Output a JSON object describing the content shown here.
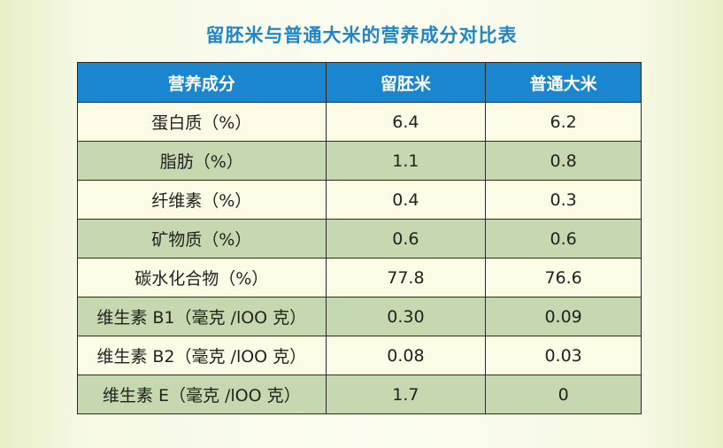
{
  "title": "留胚米与普通大米的营养成分对比表",
  "headers": [
    "营养成分",
    "留胚米",
    "普通大米"
  ],
  "rows": [
    [
      "蛋白质（%）",
      "6.4",
      "6.2"
    ],
    [
      "脂肪（%）",
      "1.1",
      "0.8"
    ],
    [
      "纤维素（%）",
      "0.4",
      "0.3"
    ],
    [
      "矿物质（%）",
      "0.6",
      "0.6"
    ],
    [
      "碳水化合物（%）",
      "77.8",
      "76.6"
    ],
    [
      "维生素 B1（毫克 /lOO 克）",
      "0.30",
      "0.09"
    ],
    [
      "维生素 B2（毫克 /lOO 克）",
      "0.08",
      "0.03"
    ],
    [
      "维生素 E（毫克 /lOO 克）",
      "1.7",
      "0"
    ]
  ]
}
